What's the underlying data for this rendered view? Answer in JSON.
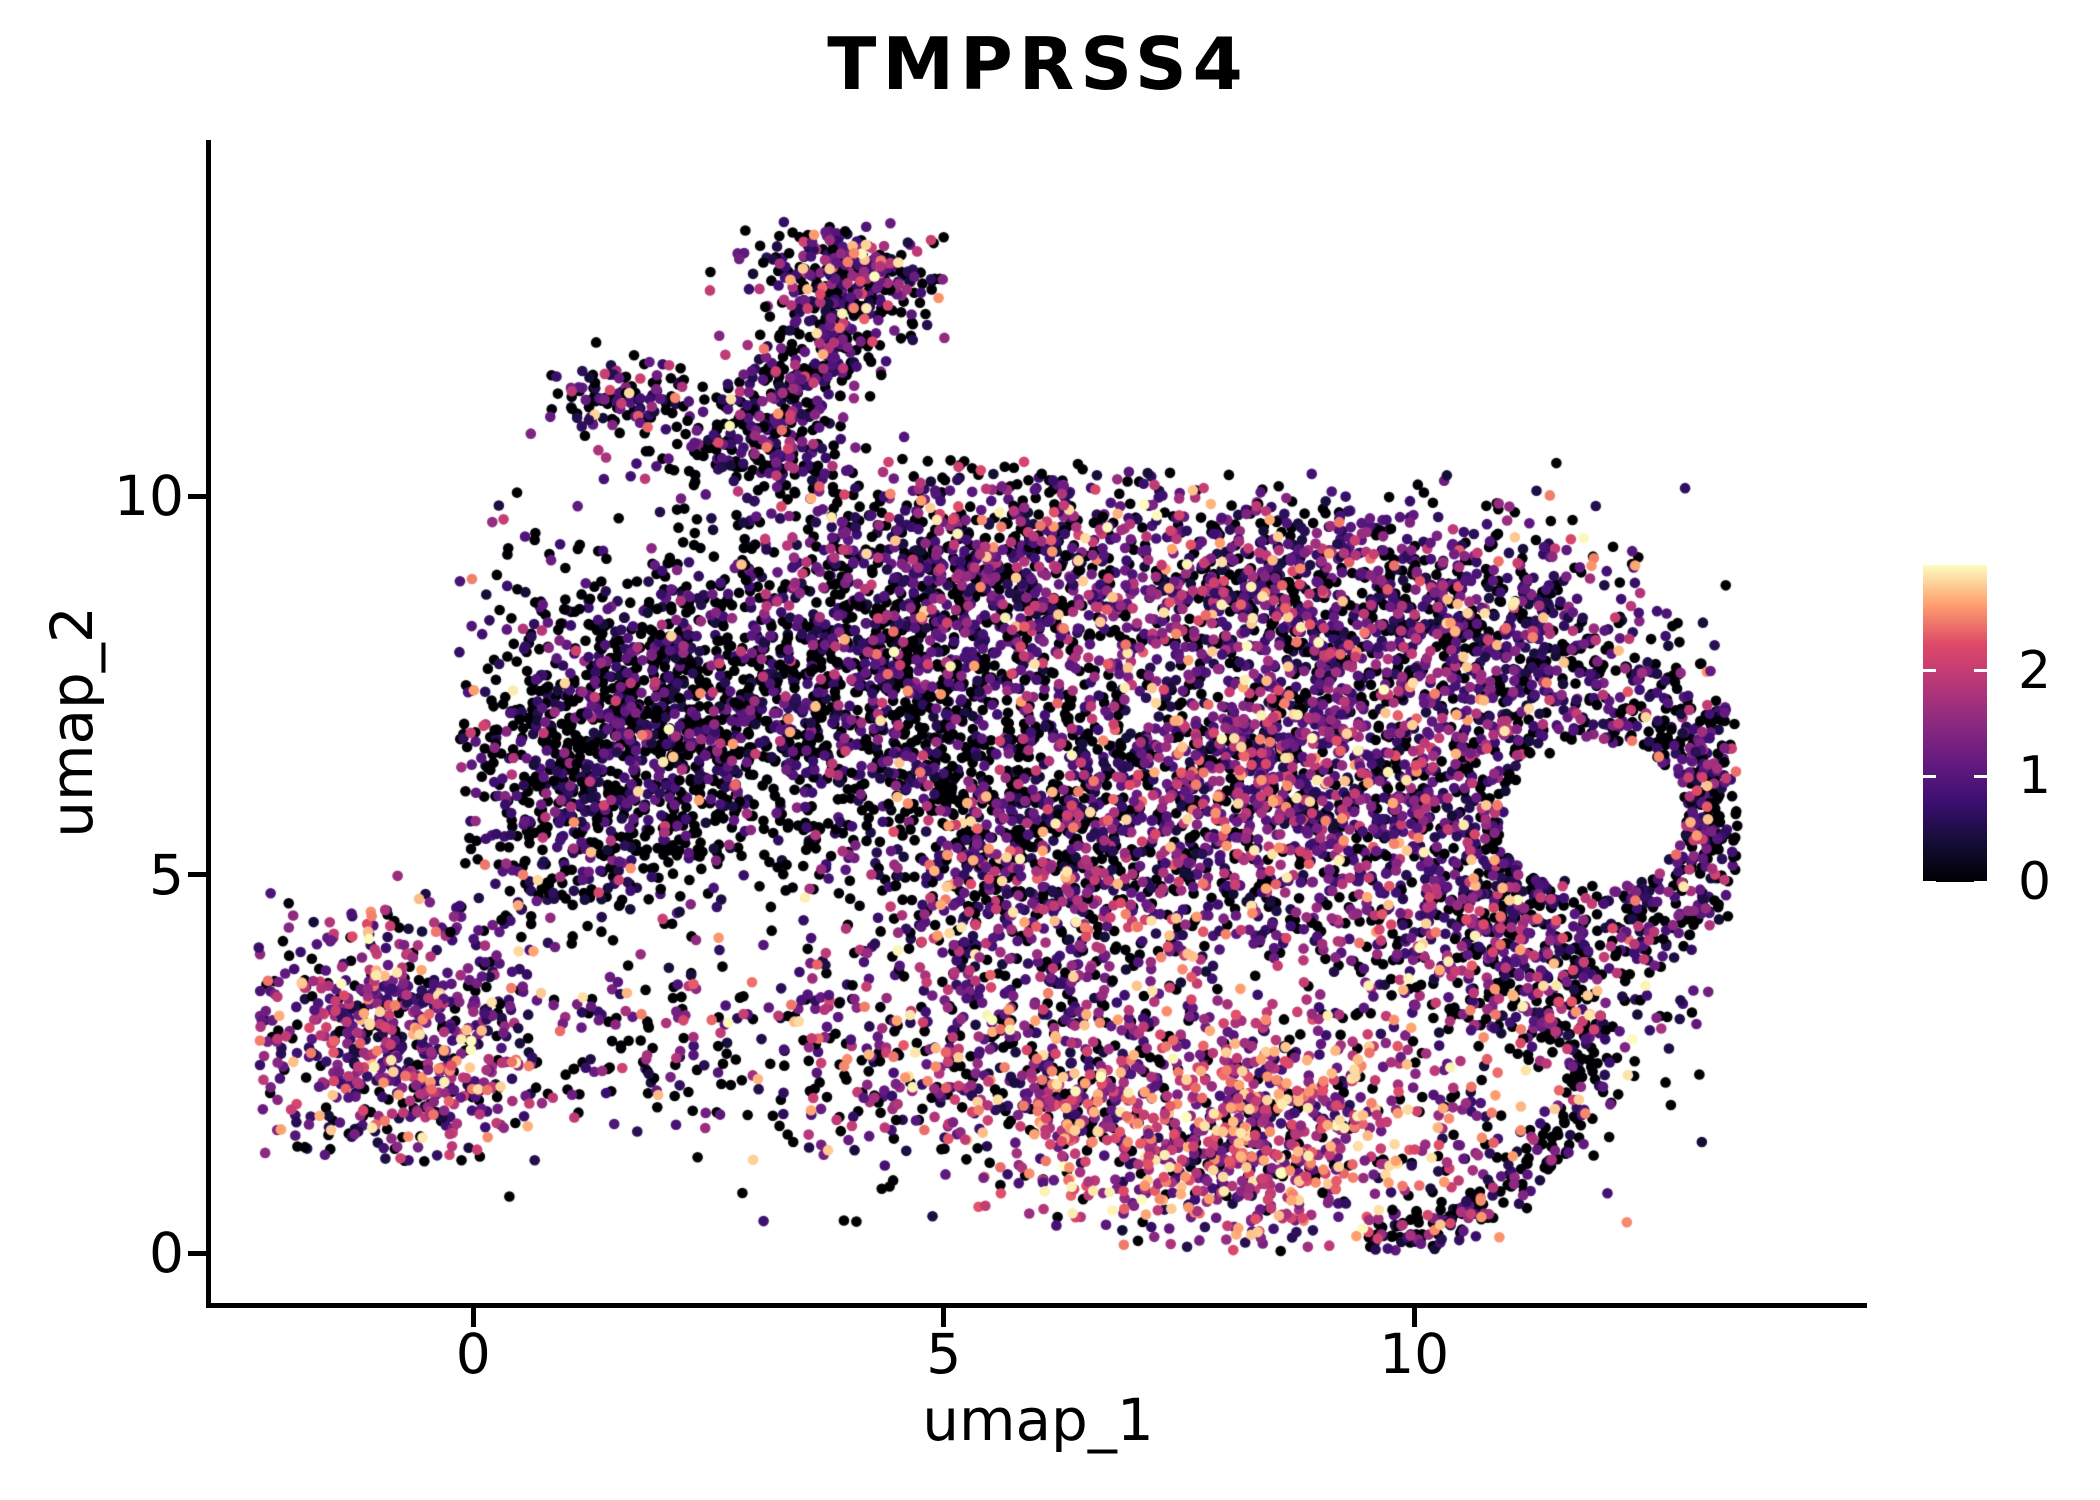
{
  "title": "TMPRSS4",
  "axes": {
    "x_label": "umap_1",
    "y_label": "umap_2",
    "x_ticks": [
      "0",
      "5",
      "10"
    ],
    "x_tick_values": [
      0,
      5,
      10
    ],
    "y_ticks": [
      "0",
      "5",
      "10"
    ],
    "y_tick_values": [
      0,
      5,
      10
    ],
    "axis_color": "#000000"
  },
  "colorbar": {
    "min": 0,
    "max": 3,
    "ticks": [
      {
        "label": "0",
        "value": 0
      },
      {
        "label": "1",
        "value": 1
      },
      {
        "label": "2",
        "value": 2
      }
    ],
    "tick_mark_color": "#ffffff",
    "palette_name": "magma",
    "stops": [
      [
        0.0,
        "#000004"
      ],
      [
        0.125,
        "#140e36"
      ],
      [
        0.25,
        "#3b0f70"
      ],
      [
        0.375,
        "#641a80"
      ],
      [
        0.5,
        "#8c2981"
      ],
      [
        0.625,
        "#b73779"
      ],
      [
        0.75,
        "#de4968"
      ],
      [
        0.875,
        "#fe9f6d"
      ],
      [
        1.0,
        "#fcfdbf"
      ]
    ]
  },
  "chart_data": {
    "type": "scatter",
    "title": "TMPRSS4",
    "xlabel": "umap_1",
    "ylabel": "umap_2",
    "xlim": [
      -2.8,
      14.8
    ],
    "ylim": [
      -0.7,
      14.7
    ],
    "x_ticks": [
      0,
      5,
      10
    ],
    "y_ticks": [
      0,
      5,
      10
    ],
    "grid": false,
    "legend_position": "right-colorbar",
    "color_scale": {
      "min": 0,
      "max": 3,
      "palette": "magma"
    },
    "n_points_approx": 12200,
    "value_bins": [
      [
        0,
        0
      ],
      [
        0.35,
        1.15
      ],
      [
        1.15,
        2.05
      ],
      [
        2.05,
        3.0
      ]
    ],
    "seed": 7,
    "bounds": {
      "xmin": -2.33,
      "xmax": 13.45,
      "ymin": -0.02,
      "ymax": 13.62
    },
    "hole": {
      "cx": 11.95,
      "cy": 5.8,
      "r": 0.95
    },
    "clusters": [
      {
        "name": "left_island",
        "shape": "gauss",
        "cx": -0.85,
        "cy": 2.8,
        "sx": 0.78,
        "sy": 0.85,
        "n": 600,
        "w": [
          0.17,
          0.36,
          0.31,
          0.16
        ],
        "clip": [
          -2.3,
          0.9,
          1.2,
          4.9
        ]
      },
      {
        "name": "left_fringe",
        "shape": "gauss",
        "cx": -0.6,
        "cy": 2.9,
        "sx": 1.15,
        "sy": 1.2,
        "n": 120,
        "w": [
          0.3,
          0.37,
          0.22,
          0.11
        ],
        "clip": [
          -2.3,
          1.3,
          1.0,
          5.0
        ]
      },
      {
        "name": "bridge_scatter",
        "shape": "gauss",
        "cx": 1.7,
        "cy": 2.7,
        "sx": 0.75,
        "sy": 0.55,
        "n": 110,
        "w": [
          0.4,
          0.3,
          0.2,
          0.1
        ]
      },
      {
        "name": "bottom_left_scatter",
        "shape": "gauss",
        "cx": 3.9,
        "cy": 2.7,
        "sx": 0.95,
        "sy": 0.75,
        "n": 170,
        "w": [
          0.38,
          0.3,
          0.2,
          0.12
        ]
      },
      {
        "name": "top_arm",
        "shape": "line",
        "x1": 2.85,
        "y1": 10.35,
        "x2": 4.3,
        "y2": 13.25,
        "sd": 0.36,
        "n": 480,
        "w": [
          0.48,
          0.34,
          0.14,
          0.04
        ],
        "clip": [
          -99,
          99,
          9.9,
          13.62
        ]
      },
      {
        "name": "arm_head",
        "shape": "gauss",
        "cx": 4.0,
        "cy": 12.95,
        "sx": 0.55,
        "sy": 0.42,
        "n": 200,
        "w": [
          0.35,
          0.35,
          0.22,
          0.08
        ],
        "clip": [
          -99,
          5.3,
          11.5,
          13.62
        ]
      },
      {
        "name": "side_spur",
        "shape": "gauss",
        "cx": 1.55,
        "cy": 11.25,
        "sx": 0.42,
        "sy": 0.26,
        "n": 130,
        "w": [
          0.5,
          0.36,
          0.11,
          0.03
        ]
      },
      {
        "name": "arm_base_scatter",
        "shape": "gauss",
        "cx": 3.1,
        "cy": 10.25,
        "sx": 0.75,
        "sy": 0.5,
        "n": 130,
        "w": [
          0.55,
          0.3,
          0.12,
          0.03
        ]
      },
      {
        "name": "dark_left_wing",
        "shape": "gauss",
        "cx": 2.1,
        "cy": 7.0,
        "sx": 1.05,
        "sy": 1.1,
        "n": 1400,
        "w": [
          0.56,
          0.33,
          0.09,
          0.02
        ],
        "clip": [
          -0.15,
          99,
          3.9,
          9.9
        ]
      },
      {
        "name": "wing_lower_edge",
        "shape": "gauss",
        "cx": 0.95,
        "cy": 5.5,
        "sx": 0.55,
        "sy": 0.7,
        "n": 220,
        "w": [
          0.58,
          0.3,
          0.09,
          0.03
        ],
        "clip": [
          -0.15,
          99,
          3.9,
          99
        ]
      },
      {
        "name": "center_dark",
        "shape": "gauss",
        "cx": 4.6,
        "cy": 7.8,
        "sx": 0.95,
        "sy": 0.85,
        "n": 700,
        "w": [
          0.5,
          0.35,
          0.12,
          0.03
        ]
      },
      {
        "name": "top_mid",
        "shape": "gauss",
        "cx": 5.5,
        "cy": 9.2,
        "sx": 1.1,
        "sy": 0.68,
        "n": 700,
        "w": [
          0.42,
          0.36,
          0.16,
          0.06
        ],
        "clip": [
          -99,
          99,
          -99,
          10.5
        ]
      },
      {
        "name": "top_right",
        "shape": "gauss",
        "cx": 8.7,
        "cy": 8.8,
        "sx": 1.25,
        "sy": 0.72,
        "n": 850,
        "w": [
          0.32,
          0.38,
          0.22,
          0.08
        ],
        "clip": [
          -99,
          99,
          -99,
          10.35
        ]
      },
      {
        "name": "right_upper",
        "shape": "gauss",
        "cx": 11.05,
        "cy": 8.2,
        "sx": 0.8,
        "sy": 0.6,
        "n": 420,
        "w": [
          0.38,
          0.38,
          0.18,
          0.06
        ],
        "clip": [
          -99,
          99,
          -99,
          9.7
        ]
      },
      {
        "name": "center_mix",
        "shape": "gauss",
        "cx": 5.7,
        "cy": 6.0,
        "sx": 1.0,
        "sy": 1.0,
        "n": 750,
        "w": [
          0.5,
          0.33,
          0.13,
          0.04
        ]
      },
      {
        "name": "mid_band",
        "shape": "gauss",
        "cx": 6.3,
        "cy": 4.6,
        "sx": 1.1,
        "sy": 0.7,
        "n": 450,
        "w": [
          0.3,
          0.3,
          0.27,
          0.13
        ]
      },
      {
        "name": "right_core",
        "shape": "gauss",
        "cx": 8.7,
        "cy": 6.25,
        "sx": 1.15,
        "sy": 1.1,
        "n": 1500,
        "w": [
          0.22,
          0.38,
          0.28,
          0.12
        ]
      },
      {
        "name": "right_ring",
        "shape": "ring",
        "cx": 11.9,
        "cy": 5.8,
        "r0": 1.0,
        "r1": 2.0,
        "n": 650,
        "w": [
          0.48,
          0.34,
          0.14,
          0.04
        ]
      },
      {
        "name": "far_right_edge",
        "shape": "gauss",
        "cx": 13.05,
        "cy": 6.0,
        "sx": 0.17,
        "sy": 0.85,
        "n": 150,
        "w": [
          0.45,
          0.35,
          0.15,
          0.05
        ],
        "clip": [
          -99,
          13.45,
          -99,
          99
        ]
      },
      {
        "name": "east_patch",
        "shape": "gauss",
        "cx": 10.3,
        "cy": 4.2,
        "sx": 0.7,
        "sy": 0.6,
        "n": 250,
        "w": [
          0.3,
          0.3,
          0.25,
          0.15
        ]
      },
      {
        "name": "southeast_patch",
        "shape": "gauss",
        "cx": 11.35,
        "cy": 3.4,
        "sx": 0.75,
        "sy": 0.55,
        "n": 270,
        "w": [
          0.42,
          0.3,
          0.2,
          0.08
        ]
      },
      {
        "name": "bottom_high_expr",
        "shape": "gauss",
        "cx": 8.3,
        "cy": 1.55,
        "sx": 1.3,
        "sy": 0.75,
        "n": 1000,
        "w": [
          0.15,
          0.2,
          0.33,
          0.32
        ],
        "clip": [
          -99,
          99,
          0.02,
          99
        ]
      },
      {
        "name": "bottom_mid",
        "shape": "gauss",
        "cx": 6.1,
        "cy": 2.4,
        "sx": 1.15,
        "sy": 0.7,
        "n": 450,
        "w": [
          0.28,
          0.27,
          0.28,
          0.17
        ],
        "clip": [
          -99,
          99,
          0.05,
          99
        ]
      },
      {
        "name": "bottom_right_rim",
        "shape": "arc",
        "cx": 9.3,
        "cy": 2.7,
        "r": 2.55,
        "sd": 0.17,
        "a0": -85,
        "a1": 8,
        "n": 220,
        "w": [
          0.6,
          0.28,
          0.09,
          0.03
        ],
        "clip": [
          -99,
          99,
          0.02,
          99
        ]
      },
      {
        "name": "sparse_noise",
        "shape": "box",
        "x0": -0.3,
        "x1": 13.1,
        "y0": 0.4,
        "y1": 10.5,
        "n": 140,
        "w": [
          0.55,
          0.3,
          0.1,
          0.05
        ]
      }
    ]
  }
}
